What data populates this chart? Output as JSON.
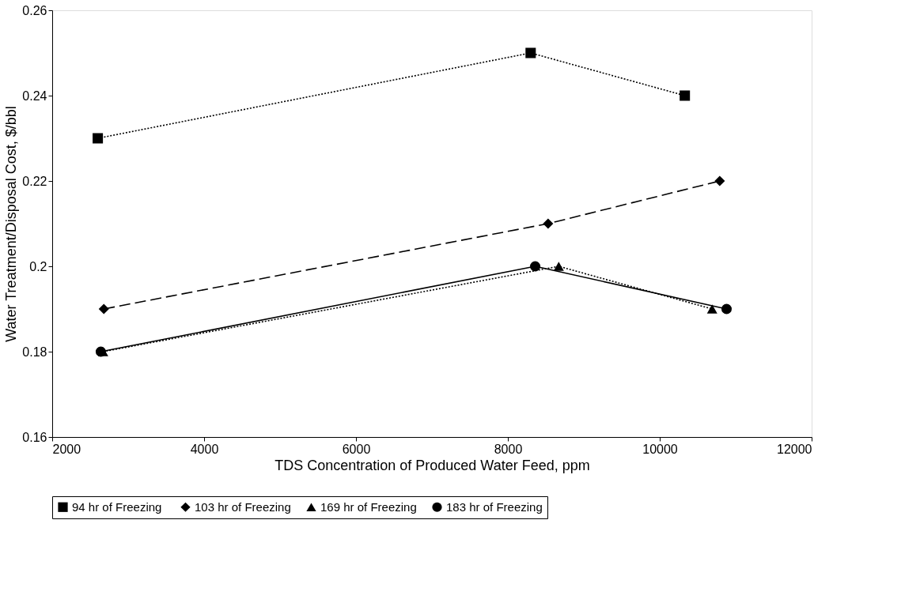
{
  "chart_data": {
    "type": "line",
    "xlabel": "TDS Concentration of Produced Water Feed, ppm",
    "ylabel": "Water Treatment/Disposal Cost, $/bbl",
    "xlim": [
      2000,
      12000
    ],
    "xticks": [
      2000,
      4000,
      6000,
      8000,
      10000,
      12000
    ],
    "ylim": [
      0.16,
      0.26
    ],
    "yticks": [
      0.16,
      0.18,
      0.2,
      0.22,
      0.24,
      0.26
    ],
    "grid": false,
    "legend": "bottom",
    "series": [
      {
        "name": "94 hr of  Freezing",
        "color": "#000000",
        "marker": "square",
        "line_style": "dotted",
        "x": [
          2600,
          8300,
          10330
        ],
        "values": [
          0.23,
          0.25,
          0.24
        ]
      },
      {
        "name": "103 hr of Freezing",
        "color": "#000000",
        "marker": "diamond",
        "line_style": "dashed",
        "x": [
          2680,
          8530,
          10790
        ],
        "values": [
          0.19,
          0.21,
          0.22
        ]
      },
      {
        "name": "169 hr of Freezing",
        "color": "#000000",
        "marker": "triangle",
        "line_style": "dotted",
        "x": [
          2670,
          8670,
          10690
        ],
        "values": [
          0.18,
          0.2,
          0.19
        ]
      },
      {
        "name": "183 hr of Freezing",
        "color": "#000000",
        "marker": "circle",
        "line_style": "solid",
        "x": [
          2640,
          8360,
          10880
        ],
        "values": [
          0.18,
          0.2,
          0.19
        ]
      }
    ]
  }
}
